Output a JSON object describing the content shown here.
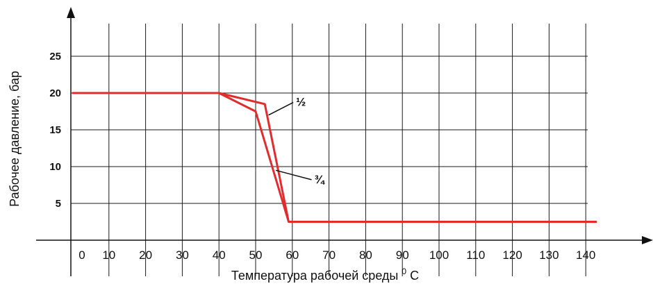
{
  "chart_data": {
    "type": "line",
    "xlabel": "Температура рабочей среды",
    "xlabel_unit_sup": "0",
    "xlabel_unit": "C",
    "ylabel": "Рабочее давление, бар",
    "xlim": [
      0,
      140
    ],
    "ylim": [
      0,
      28
    ],
    "x_ticks": [
      "0",
      "10",
      "20",
      "30",
      "40",
      "50",
      "60",
      "70",
      "80",
      "90",
      "100",
      "110",
      "120",
      "130",
      "140"
    ],
    "y_ticks": [
      "5",
      "10",
      "15",
      "20",
      "25"
    ],
    "grid": true,
    "line_color": "#e32b2b",
    "series": [
      {
        "name": "½",
        "points": [
          [
            0,
            20
          ],
          [
            40,
            20
          ],
          [
            50,
            17.5
          ],
          [
            59,
            2.5
          ],
          [
            143,
            2.5
          ]
        ]
      },
      {
        "name": "¾",
        "points": [
          [
            0,
            20
          ],
          [
            40,
            20
          ],
          [
            52.5,
            18.5
          ],
          [
            59,
            2.5
          ],
          [
            143,
            2.5
          ]
        ]
      }
    ],
    "annotations": [
      {
        "text": "½",
        "x": 61,
        "y": 19,
        "target": [
          53.5,
          17
        ]
      },
      {
        "text": "¾",
        "x": 66,
        "y": 8.5,
        "target": [
          55.5,
          9.5
        ]
      }
    ]
  }
}
